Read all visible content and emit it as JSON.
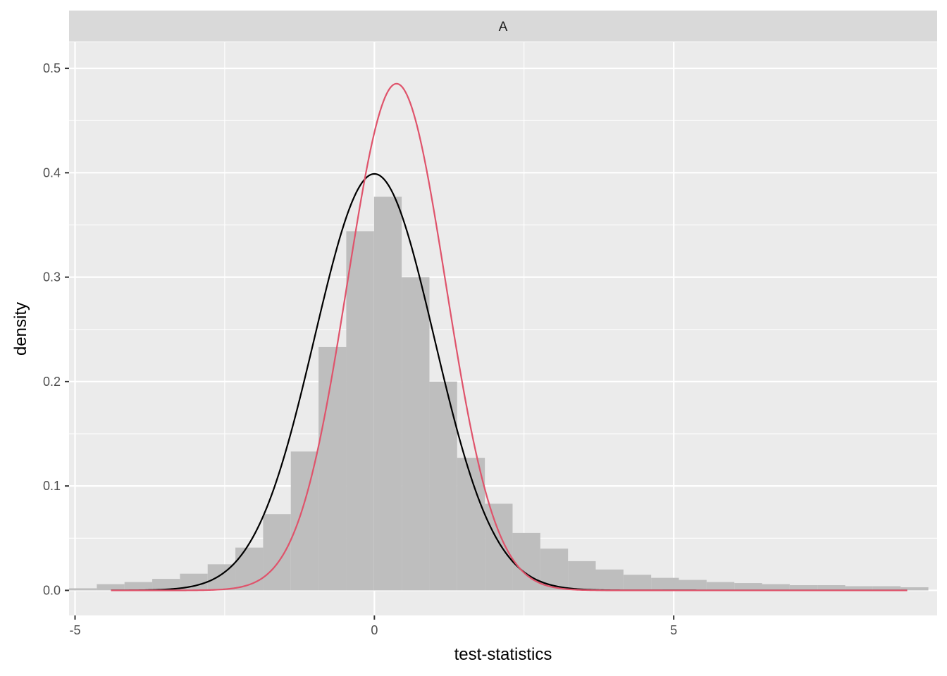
{
  "chart_data": {
    "type": "bar",
    "facet_label": "A",
    "xlabel": "test-statistics",
    "ylabel": "density",
    "xlim": [
      -5.1,
      9.4
    ],
    "ylim": [
      -0.024,
      0.525
    ],
    "x_ticks": [
      -5,
      0,
      5
    ],
    "x_tick_labels": [
      "-5",
      "0",
      "5"
    ],
    "y_ticks": [
      0.0,
      0.1,
      0.2,
      0.3,
      0.4,
      0.5
    ],
    "y_tick_labels": [
      "0.0",
      "0.1",
      "0.2",
      "0.3",
      "0.4",
      "0.5"
    ],
    "grid": true,
    "histogram": {
      "bin_width": 0.463,
      "bin_centers": [
        -4.868,
        -4.405,
        -3.942,
        -3.479,
        -3.016,
        -2.553,
        -2.09,
        -1.627,
        -1.164,
        -0.701,
        -0.238,
        0.225,
        0.688,
        1.151,
        1.614,
        2.077,
        2.54,
        3.003,
        3.466,
        3.929,
        4.392,
        4.855,
        5.318,
        5.781,
        6.244,
        6.707,
        7.17,
        7.633,
        8.096,
        8.559,
        9.022
      ],
      "values": [
        0.002,
        0.006,
        0.008,
        0.011,
        0.016,
        0.025,
        0.041,
        0.073,
        0.133,
        0.233,
        0.344,
        0.377,
        0.3,
        0.2,
        0.127,
        0.083,
        0.055,
        0.04,
        0.028,
        0.02,
        0.015,
        0.012,
        0.01,
        0.008,
        0.007,
        0.006,
        0.005,
        0.005,
        0.004,
        0.004,
        0.003
      ]
    },
    "series": [
      {
        "type": "normal-density",
        "mean": 0.0,
        "sd": 1.0,
        "color": "#000000"
      },
      {
        "type": "normal-density",
        "mean": 0.37,
        "sd": 0.822,
        "color": "#df536b"
      }
    ],
    "curve_range": [
      -4.4,
      8.9
    ],
    "colors": {
      "panel": "#ebebeb",
      "grid": "#ffffff",
      "strip": "#d9d9d9",
      "histogram": "#bebebe",
      "axis_tick": "#333333"
    }
  }
}
